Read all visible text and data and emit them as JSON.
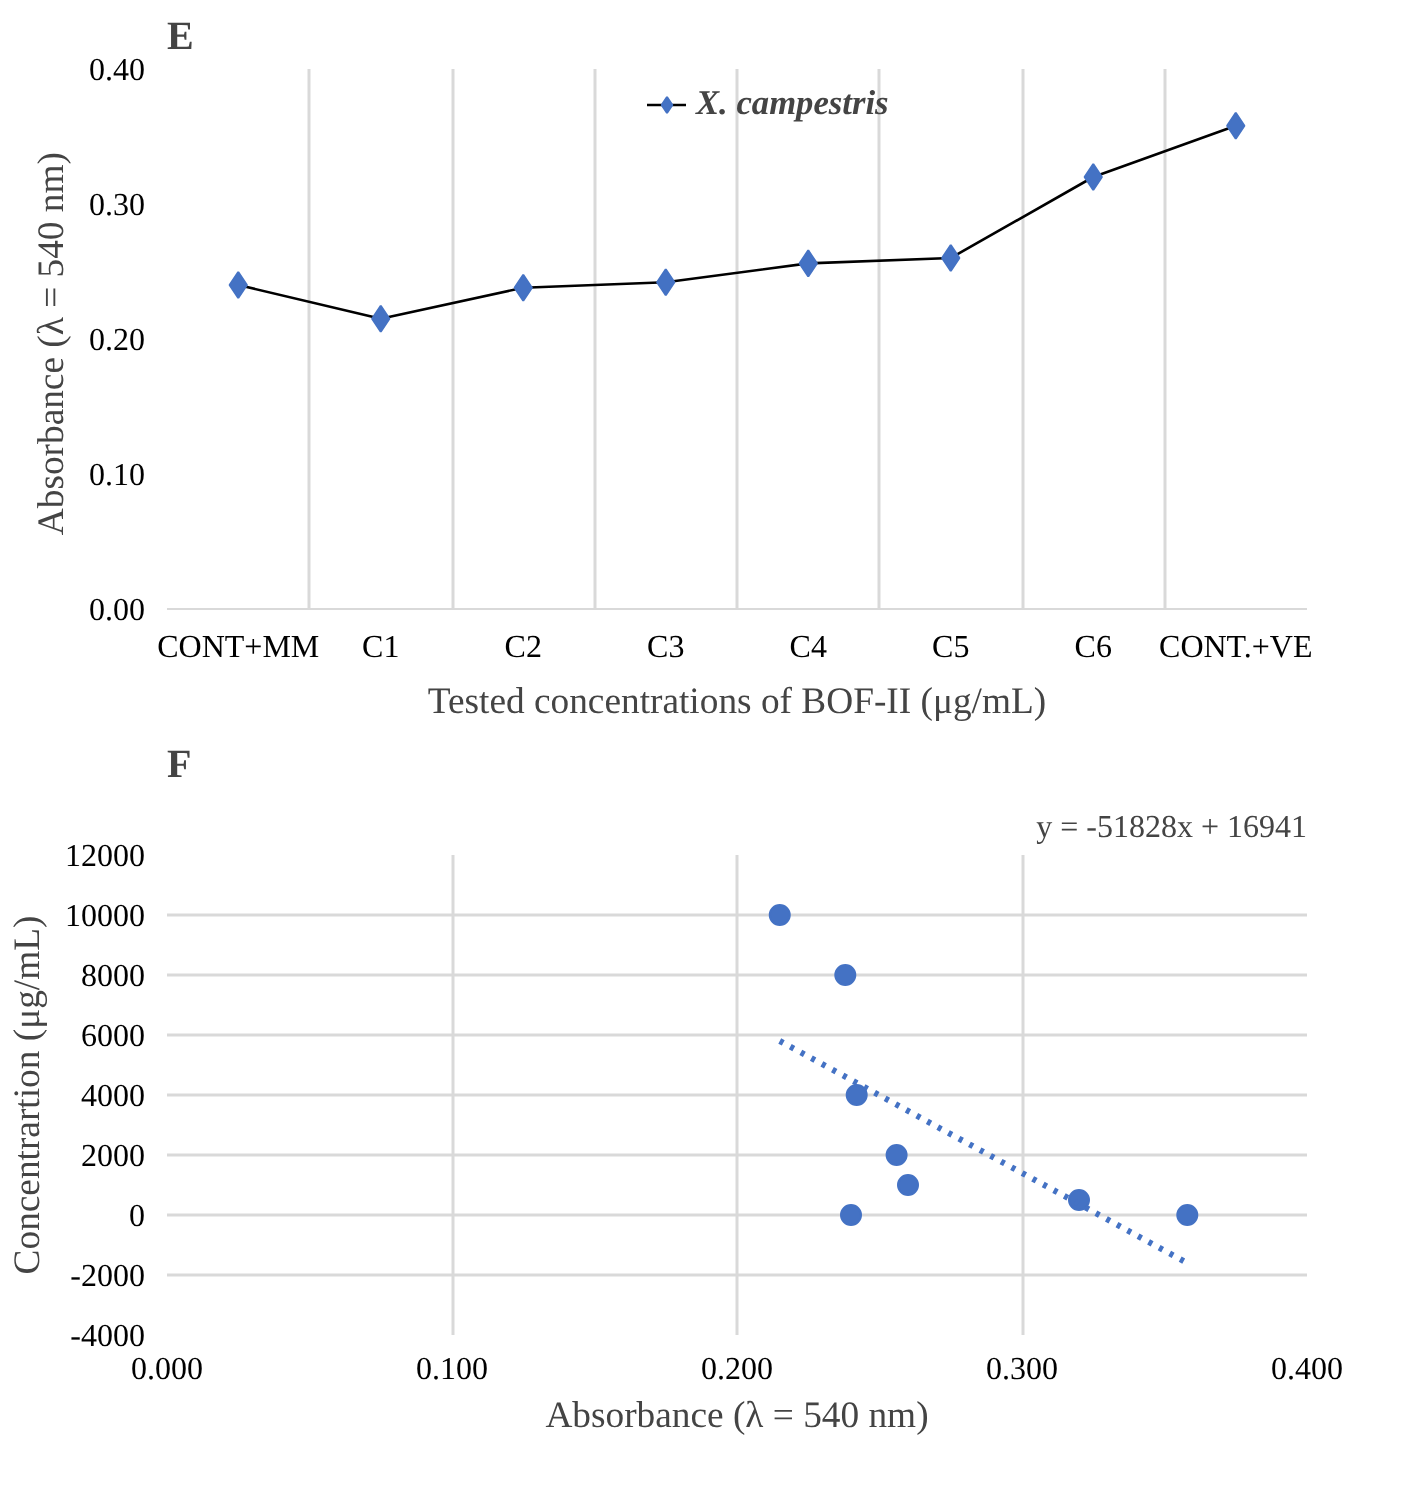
{
  "chart_data": [
    {
      "type": "line",
      "title": "E",
      "xlabel": "Tested concentrations of BOF-II (μg/mL)",
      "ylabel": "Absorbance (λ = 540  nm)",
      "categories": [
        "CONT+MM",
        "C1",
        "C2",
        "C3",
        "C4",
        "C5",
        "C6",
        "CONT.+VE"
      ],
      "series": [
        {
          "name": "X. campestris",
          "color": "#4472c4",
          "values": [
            0.24,
            0.215,
            0.238,
            0.242,
            0.256,
            0.26,
            0.32,
            0.358
          ]
        }
      ],
      "ylim": [
        0,
        0.4
      ],
      "yticks": [
        {
          "value": 0,
          "label": "0.00"
        },
        {
          "value": 0.1,
          "label": "0.10"
        },
        {
          "value": 0.2,
          "label": "0.20"
        },
        {
          "value": 0.3,
          "label": "0.30"
        },
        {
          "value": 0.4,
          "label": "0.40"
        }
      ],
      "grid": "x",
      "legend": "top right",
      "marker": "diamond",
      "line_style": "solid"
    },
    {
      "type": "scatter",
      "title": "F",
      "xlabel": "Absorbance (λ = 540 nm)",
      "ylabel": "Concentrartion (μg/mL)",
      "annotations": [
        "y = -51828x + 16941"
      ],
      "series": [
        {
          "color": "#4472c4",
          "x": [
            0.215,
            0.238,
            0.242,
            0.256,
            0.26,
            0.24,
            0.32,
            0.358
          ],
          "values": [
            10000,
            8000,
            4000,
            2000,
            1000,
            0,
            500,
            0
          ]
        },
        {
          "type": "line",
          "color": "#4472c4",
          "line_style": "dotted",
          "marker": "none",
          "x": [
            0.215,
            0.358
          ],
          "values": [
            5800,
            -1600
          ]
        }
      ],
      "xlim": [
        0,
        0.4
      ],
      "xticks": [
        {
          "value": 0,
          "label": "0.000"
        },
        {
          "value": 0.1,
          "label": "0.100"
        },
        {
          "value": 0.2,
          "label": "0.200"
        },
        {
          "value": 0.3,
          "label": "0.300"
        },
        {
          "value": 0.4,
          "label": "0.400"
        }
      ],
      "ylim": [
        -4000,
        12000
      ],
      "yticks": [
        -4000,
        -2000,
        0,
        2000,
        4000,
        6000,
        8000,
        10000,
        12000
      ],
      "grid": true,
      "marker": "circle"
    }
  ]
}
